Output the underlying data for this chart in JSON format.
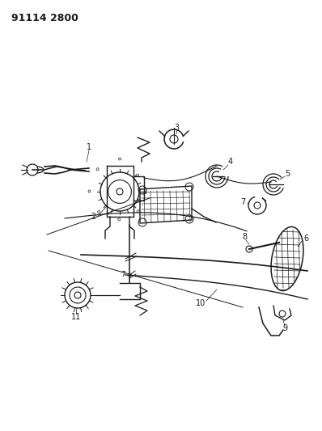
{
  "title": "91114 2800",
  "background_color": "#ffffff",
  "line_color": "#1a1a1a",
  "figsize": [
    3.98,
    5.33
  ],
  "dpi": 100
}
